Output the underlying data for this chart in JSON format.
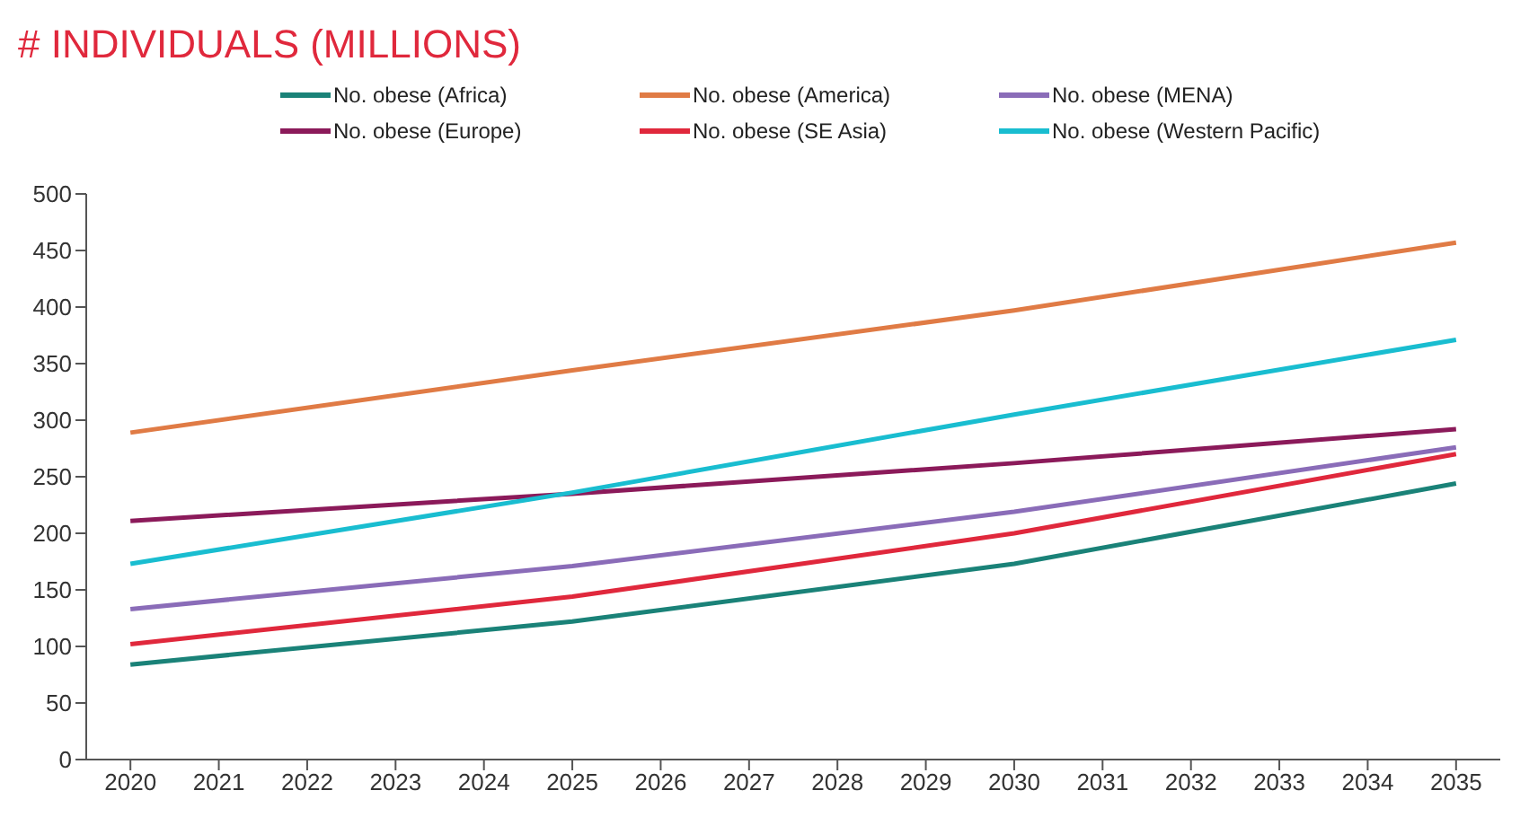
{
  "chart_data": {
    "type": "line",
    "title": "# INDIVIDUALS (MILLIONS)",
    "x": [
      2020,
      2025,
      2030,
      2035
    ],
    "xlim": [
      2019.5,
      2035.5
    ],
    "xticks": [
      2020,
      2021,
      2022,
      2023,
      2024,
      2025,
      2026,
      2027,
      2028,
      2029,
      2030,
      2031,
      2032,
      2033,
      2034,
      2035
    ],
    "ylim": [
      0,
      500
    ],
    "yticks": [
      0,
      50,
      100,
      150,
      200,
      250,
      300,
      350,
      400,
      450,
      500
    ],
    "grid": false,
    "legend": "top",
    "marker": "none",
    "line_style": "solid",
    "series": [
      {
        "name": "No. obese (Africa)",
        "color": "#1a8278",
        "values": [
          84,
          122,
          173,
          244
        ]
      },
      {
        "name": "No. obese (America)",
        "color": "#e07b45",
        "values": [
          289,
          344,
          397,
          457
        ]
      },
      {
        "name": "No. obese (MENA)",
        "color": "#8a6cb8",
        "values": [
          133,
          171,
          219,
          276
        ]
      },
      {
        "name": "No. obese (Europe)",
        "color": "#8b1a5a",
        "values": [
          211,
          235,
          262,
          292
        ]
      },
      {
        "name": "No. obese (SE Asia)",
        "color": "#e0283c",
        "values": [
          102,
          144,
          200,
          270
        ]
      },
      {
        "name": "No. obese (Western Pacific)",
        "color": "#19bdd0",
        "values": [
          173,
          236,
          305,
          371
        ]
      }
    ]
  }
}
